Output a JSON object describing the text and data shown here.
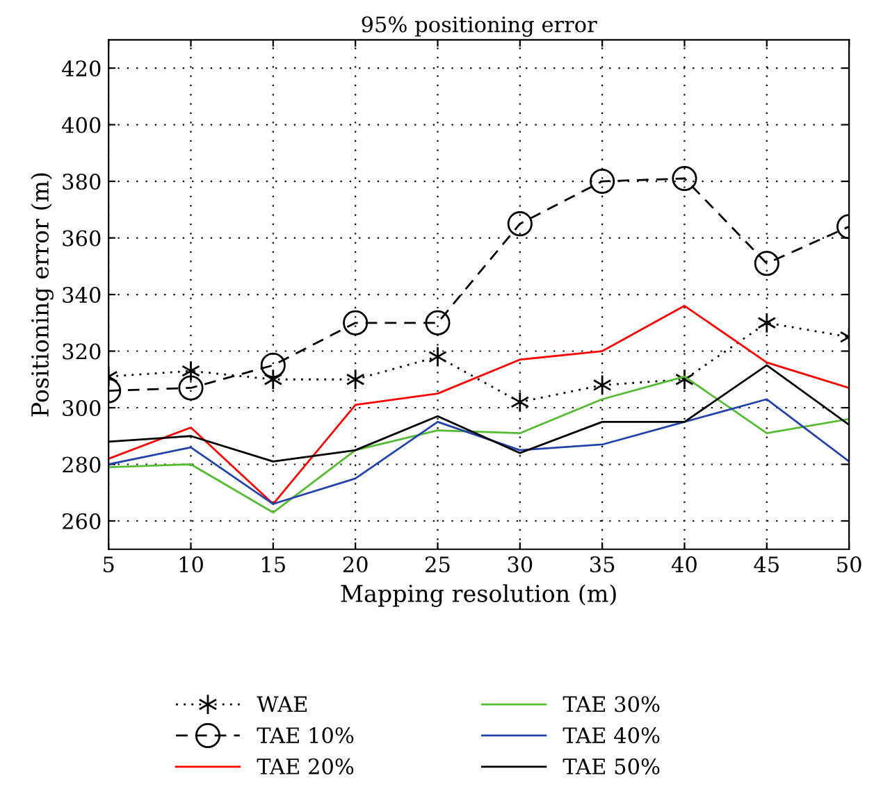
{
  "chart_data": {
    "type": "line",
    "title": "95% positioning error",
    "xlabel": "Mapping resolution (m)",
    "ylabel": "Positioning error (m)",
    "x": [
      5,
      10,
      15,
      20,
      25,
      30,
      35,
      40,
      45,
      50
    ],
    "xlim": [
      5,
      50
    ],
    "xticks": [
      5,
      10,
      15,
      20,
      25,
      30,
      35,
      40,
      45,
      50
    ],
    "ylim": [
      250,
      430
    ],
    "yticks": [
      260,
      280,
      300,
      320,
      340,
      360,
      380,
      400,
      420
    ],
    "grid": true,
    "legend": "bottom",
    "series": [
      {
        "name": "WAE",
        "color": "#000000",
        "marker": "cross",
        "line_style": "dotted",
        "values": [
          311,
          313,
          310,
          310,
          318,
          302,
          308,
          310,
          330,
          325
        ]
      },
      {
        "name": "TAE 10%",
        "color": "#000000",
        "marker": "circle",
        "line_style": "dashed",
        "values": [
          306,
          307,
          315,
          330,
          330,
          365,
          380,
          381,
          351,
          364
        ]
      },
      {
        "name": "TAE 20%",
        "color": "#ff0000",
        "values": [
          282,
          293,
          266,
          301,
          305,
          317,
          320,
          336,
          316,
          307
        ]
      },
      {
        "name": "TAE 30%",
        "color": "#55bb33",
        "values": [
          279,
          280,
          263,
          285,
          292,
          291,
          303,
          311,
          291,
          296
        ]
      },
      {
        "name": "TAE 40%",
        "color": "#2244aa",
        "values": [
          280,
          286,
          266,
          275,
          295,
          285,
          287,
          295,
          303,
          281
        ]
      },
      {
        "name": "TAE 50%",
        "color": "#000000",
        "values": [
          288,
          290,
          281,
          285,
          297,
          284,
          295,
          295,
          315,
          294
        ]
      }
    ]
  }
}
